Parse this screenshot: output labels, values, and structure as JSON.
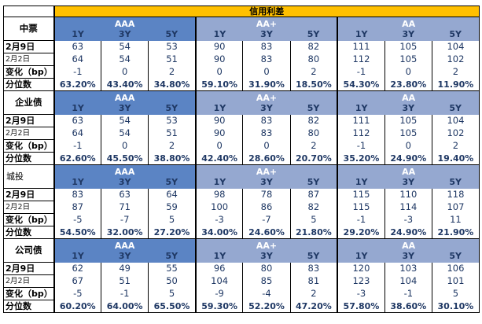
{
  "colors": {
    "header_orange": "#FFC000",
    "band_dark_blue": "#5B84C4",
    "band_light_blue": "#95A8D0",
    "value_navy": "#1F3864"
  },
  "chart_data": {
    "type": "table",
    "title": "信用利差",
    "column_groups": [
      "AAA",
      "AA+",
      "AA"
    ],
    "tenors": [
      "1Y",
      "3Y",
      "5Y"
    ],
    "row_labels": [
      "2月9日",
      "2月2日",
      "变化（bp）",
      "分位数"
    ],
    "sections": [
      {
        "name": "中票",
        "label_style": "strong",
        "rows": [
          [
            "63",
            "54",
            "53",
            "90",
            "83",
            "82",
            "111",
            "105",
            "104"
          ],
          [
            "64",
            "54",
            "51",
            "90",
            "83",
            "80",
            "112",
            "105",
            "102"
          ],
          [
            "-1",
            "0",
            "2",
            "0",
            "0",
            "2",
            "-1",
            "0",
            "2"
          ],
          [
            "63.20%",
            "43.40%",
            "34.80%",
            "59.10%",
            "31.90%",
            "18.50%",
            "54.30%",
            "23.80%",
            "11.90%"
          ]
        ]
      },
      {
        "name": "企业债",
        "label_style": "strong",
        "rows": [
          [
            "63",
            "54",
            "53",
            "90",
            "83",
            "82",
            "111",
            "105",
            "104"
          ],
          [
            "64",
            "54",
            "51",
            "90",
            "83",
            "80",
            "112",
            "105",
            "102"
          ],
          [
            "-1",
            "0",
            "2",
            "0",
            "0",
            "2",
            "-1",
            "0",
            "2"
          ],
          [
            "62.60%",
            "45.50%",
            "38.80%",
            "42.40%",
            "28.60%",
            "20.70%",
            "35.20%",
            "24.90%",
            "19.40%"
          ]
        ]
      },
      {
        "name": "城投",
        "label_style": "plain",
        "rows": [
          [
            "83",
            "63",
            "64",
            "98",
            "78",
            "87",
            "115",
            "110",
            "118"
          ],
          [
            "87",
            "71",
            "59",
            "100",
            "86",
            "82",
            "115",
            "114",
            "107"
          ],
          [
            "-5",
            "-7",
            "5",
            "-3",
            "-7",
            "5",
            "-1",
            "-3",
            "11"
          ],
          [
            "54.50%",
            "32.00%",
            "27.20%",
            "34.00%",
            "24.60%",
            "21.80%",
            "29.20%",
            "24.90%",
            "21.90%"
          ]
        ]
      },
      {
        "name": "公司债",
        "label_style": "strong",
        "rows": [
          [
            "62",
            "49",
            "55",
            "96",
            "80",
            "83",
            "120",
            "103",
            "106"
          ],
          [
            "67",
            "51",
            "50",
            "104",
            "85",
            "81",
            "123",
            "104",
            "101"
          ],
          [
            "-5",
            "-1",
            "5",
            "-9",
            "-4",
            "2",
            "-3",
            "-1",
            "5"
          ],
          [
            "60.20%",
            "64.00%",
            "65.50%",
            "59.30%",
            "52.20%",
            "47.20%",
            "57.80%",
            "38.60%",
            "30.10%"
          ]
        ]
      }
    ]
  }
}
